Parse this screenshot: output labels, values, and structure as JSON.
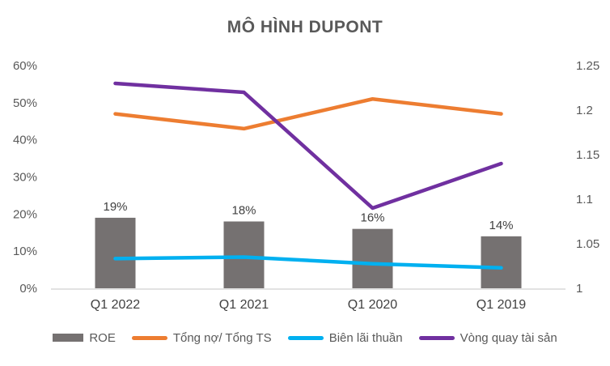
{
  "chart_data": {
    "type": "combo-bar-line",
    "title": "MÔ HÌNH DUPONT",
    "categories": [
      "Q1 2022",
      "Q1 2021",
      "Q1 2020",
      "Q1 2019"
    ],
    "series": [
      {
        "name": "ROE",
        "slug": "roe",
        "type": "bar",
        "axis": "left",
        "color": "#757171",
        "values": [
          19,
          18,
          16,
          14
        ],
        "data_labels": [
          "19%",
          "18%",
          "16%",
          "14%"
        ]
      },
      {
        "name": "Tổng nợ/ Tổng TS",
        "slug": "tong-no-tong-ts",
        "type": "line",
        "axis": "left",
        "color": "#ED7D31",
        "values": [
          47,
          43,
          51,
          47
        ]
      },
      {
        "name": "Biên lãi thuần",
        "slug": "bien-lai-thuan",
        "type": "line",
        "axis": "left",
        "color": "#00B0F0",
        "values": [
          8,
          8.4,
          6.6,
          5.5
        ]
      },
      {
        "name": "Vòng quay tài sản",
        "slug": "vong-quay-tai-san",
        "type": "line",
        "axis": "right",
        "color": "#7030A0",
        "values": [
          1.23,
          1.22,
          1.09,
          1.14
        ]
      }
    ],
    "left_axis": {
      "min": 0,
      "max": 60,
      "step": 10,
      "tick_labels": [
        "0%",
        "10%",
        "20%",
        "30%",
        "40%",
        "50%",
        "60%"
      ]
    },
    "right_axis": {
      "min": 1,
      "max": 1.25,
      "step": 0.05,
      "tick_labels": [
        "1",
        "1.05",
        "1.1",
        "1.15",
        "1.2",
        "1.25"
      ]
    },
    "axis_line_color": "#D9D9D9",
    "grid": false,
    "legend_position": "bottom"
  }
}
